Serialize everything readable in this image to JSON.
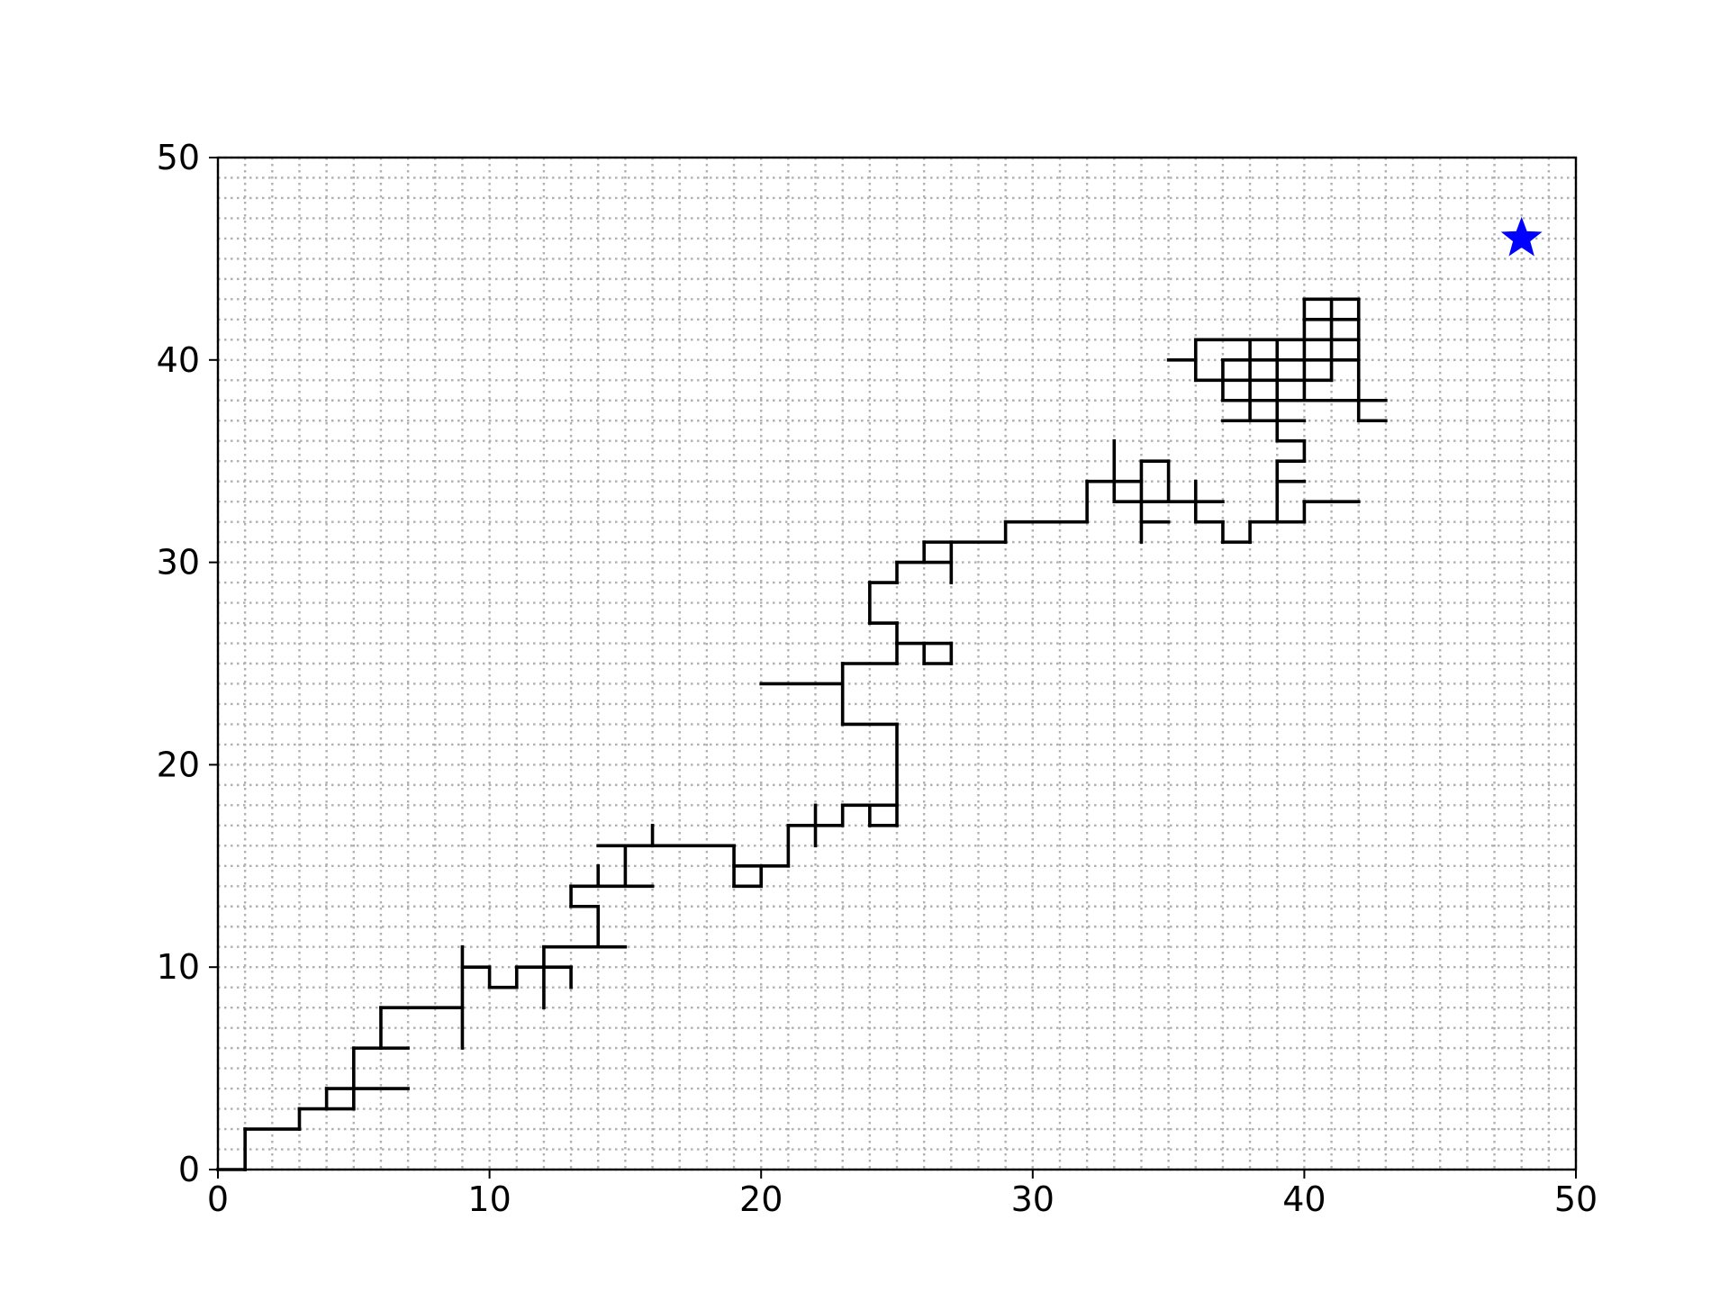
{
  "chart_data": {
    "type": "line",
    "xlim": [
      0,
      50
    ],
    "ylim": [
      0,
      50
    ],
    "grid": true,
    "x_ticks": [
      "0",
      "10",
      "20",
      "30",
      "40",
      "50"
    ],
    "y_ticks": [
      "0",
      "10",
      "20",
      "30",
      "40",
      "50"
    ],
    "series": [
      {
        "kind": "grid-path",
        "color": "#000000",
        "segments": [
          [
            [
              0,
              0
            ],
            [
              1,
              0
            ]
          ],
          [
            [
              1,
              0
            ],
            [
              1,
              2
            ]
          ],
          [
            [
              1,
              2
            ],
            [
              3,
              2
            ]
          ],
          [
            [
              3,
              2
            ],
            [
              3,
              3
            ]
          ],
          [
            [
              3,
              3
            ],
            [
              5,
              3
            ]
          ],
          [
            [
              5,
              3
            ],
            [
              5,
              6
            ]
          ],
          [
            [
              4,
              3
            ],
            [
              4,
              4
            ]
          ],
          [
            [
              4,
              4
            ],
            [
              7,
              4
            ]
          ],
          [
            [
              5,
              6
            ],
            [
              7,
              6
            ]
          ],
          [
            [
              6,
              6
            ],
            [
              6,
              8
            ]
          ],
          [
            [
              6,
              8
            ],
            [
              9,
              8
            ]
          ],
          [
            [
              9,
              6
            ],
            [
              9,
              11
            ]
          ],
          [
            [
              9,
              10
            ],
            [
              10,
              10
            ]
          ],
          [
            [
              10,
              10
            ],
            [
              10,
              9
            ]
          ],
          [
            [
              10,
              9
            ],
            [
              11,
              9
            ]
          ],
          [
            [
              11,
              9
            ],
            [
              11,
              10
            ]
          ],
          [
            [
              11,
              10
            ],
            [
              13,
              10
            ]
          ],
          [
            [
              13,
              9
            ],
            [
              13,
              10
            ]
          ],
          [
            [
              12,
              8
            ],
            [
              12,
              11
            ]
          ],
          [
            [
              12,
              11
            ],
            [
              15,
              11
            ]
          ],
          [
            [
              14,
              11
            ],
            [
              14,
              13
            ]
          ],
          [
            [
              14,
              13
            ],
            [
              13,
              13
            ]
          ],
          [
            [
              13,
              13
            ],
            [
              13,
              14
            ]
          ],
          [
            [
              13,
              14
            ],
            [
              16,
              14
            ]
          ],
          [
            [
              14,
              14
            ],
            [
              14,
              15
            ]
          ],
          [
            [
              15,
              14
            ],
            [
              15,
              16
            ]
          ],
          [
            [
              14,
              16
            ],
            [
              19,
              16
            ]
          ],
          [
            [
              16,
              16
            ],
            [
              16,
              17
            ]
          ],
          [
            [
              19,
              16
            ],
            [
              19,
              14
            ]
          ],
          [
            [
              19,
              14
            ],
            [
              20,
              14
            ]
          ],
          [
            [
              20,
              14
            ],
            [
              20,
              15
            ]
          ],
          [
            [
              19,
              15
            ],
            [
              21,
              15
            ]
          ],
          [
            [
              21,
              15
            ],
            [
              21,
              17
            ]
          ],
          [
            [
              21,
              17
            ],
            [
              23,
              17
            ]
          ],
          [
            [
              22,
              16
            ],
            [
              22,
              18
            ]
          ],
          [
            [
              23,
              17
            ],
            [
              23,
              18
            ]
          ],
          [
            [
              23,
              18
            ],
            [
              25,
              18
            ]
          ],
          [
            [
              24,
              18
            ],
            [
              24,
              17
            ]
          ],
          [
            [
              24,
              17
            ],
            [
              25,
              17
            ]
          ],
          [
            [
              25,
              17
            ],
            [
              25,
              22
            ]
          ],
          [
            [
              25,
              22
            ],
            [
              23,
              22
            ]
          ],
          [
            [
              23,
              22
            ],
            [
              23,
              25
            ]
          ],
          [
            [
              20,
              24
            ],
            [
              23,
              24
            ]
          ],
          [
            [
              23,
              25
            ],
            [
              25,
              25
            ]
          ],
          [
            [
              25,
              25
            ],
            [
              25,
              26
            ]
          ],
          [
            [
              25,
              26
            ],
            [
              27,
              26
            ]
          ],
          [
            [
              27,
              26
            ],
            [
              27,
              25
            ]
          ],
          [
            [
              27,
              25
            ],
            [
              26,
              25
            ]
          ],
          [
            [
              26,
              25
            ],
            [
              26,
              26
            ]
          ],
          [
            [
              25,
              26
            ],
            [
              25,
              27
            ]
          ],
          [
            [
              25,
              27
            ],
            [
              24,
              27
            ]
          ],
          [
            [
              24,
              27
            ],
            [
              24,
              29
            ]
          ],
          [
            [
              24,
              29
            ],
            [
              25,
              29
            ]
          ],
          [
            [
              25,
              29
            ],
            [
              25,
              30
            ]
          ],
          [
            [
              25,
              30
            ],
            [
              27,
              30
            ]
          ],
          [
            [
              26,
              30
            ],
            [
              26,
              31
            ]
          ],
          [
            [
              27,
              29
            ],
            [
              27,
              31
            ]
          ],
          [
            [
              26,
              31
            ],
            [
              29,
              31
            ]
          ],
          [
            [
              29,
              31
            ],
            [
              29,
              32
            ]
          ],
          [
            [
              29,
              32
            ],
            [
              32,
              32
            ]
          ],
          [
            [
              32,
              32
            ],
            [
              32,
              34
            ]
          ],
          [
            [
              32,
              34
            ],
            [
              34,
              34
            ]
          ],
          [
            [
              33,
              33
            ],
            [
              33,
              36
            ]
          ],
          [
            [
              33,
              33
            ],
            [
              37,
              33
            ]
          ],
          [
            [
              34,
              31
            ],
            [
              34,
              35
            ]
          ],
          [
            [
              34,
              32
            ],
            [
              35,
              32
            ]
          ],
          [
            [
              34,
              35
            ],
            [
              35,
              35
            ]
          ],
          [
            [
              35,
              35
            ],
            [
              35,
              33
            ]
          ],
          [
            [
              36,
              32
            ],
            [
              36,
              34
            ]
          ],
          [
            [
              36,
              32
            ],
            [
              37,
              32
            ]
          ],
          [
            [
              37,
              32
            ],
            [
              37,
              31
            ]
          ],
          [
            [
              37,
              31
            ],
            [
              38,
              31
            ]
          ],
          [
            [
              38,
              31
            ],
            [
              38,
              32
            ]
          ],
          [
            [
              38,
              32
            ],
            [
              40,
              32
            ]
          ],
          [
            [
              39,
              32
            ],
            [
              39,
              35
            ]
          ],
          [
            [
              39,
              34
            ],
            [
              40,
              34
            ]
          ],
          [
            [
              39,
              35
            ],
            [
              40,
              35
            ]
          ],
          [
            [
              40,
              35
            ],
            [
              40,
              36
            ]
          ],
          [
            [
              40,
              36
            ],
            [
              39,
              36
            ]
          ],
          [
            [
              39,
              36
            ],
            [
              39,
              41
            ]
          ],
          [
            [
              40,
              32
            ],
            [
              40,
              33
            ]
          ],
          [
            [
              40,
              33
            ],
            [
              42,
              33
            ]
          ],
          [
            [
              35,
              40
            ],
            [
              36,
              40
            ]
          ],
          [
            [
              36,
              39
            ],
            [
              36,
              41
            ]
          ],
          [
            [
              36,
              41
            ],
            [
              42,
              41
            ]
          ],
          [
            [
              36,
              39
            ],
            [
              37,
              39
            ]
          ],
          [
            [
              37,
              38
            ],
            [
              37,
              40
            ]
          ],
          [
            [
              37,
              38
            ],
            [
              42,
              38
            ]
          ],
          [
            [
              37,
              37
            ],
            [
              40,
              37
            ]
          ],
          [
            [
              37,
              40
            ],
            [
              42,
              40
            ]
          ],
          [
            [
              38,
              37
            ],
            [
              38,
              41
            ]
          ],
          [
            [
              40,
              38
            ],
            [
              40,
              43
            ]
          ],
          [
            [
              40,
              43
            ],
            [
              42,
              43
            ]
          ],
          [
            [
              40,
              42
            ],
            [
              42,
              42
            ]
          ],
          [
            [
              41,
              39
            ],
            [
              41,
              43
            ]
          ],
          [
            [
              42,
              37
            ],
            [
              42,
              43
            ]
          ],
          [
            [
              42,
              37
            ],
            [
              43,
              37
            ]
          ],
          [
            [
              42,
              38
            ],
            [
              43,
              38
            ]
          ],
          [
            [
              37,
              39
            ],
            [
              41,
              39
            ]
          ]
        ]
      },
      {
        "kind": "marker",
        "marker": "star",
        "color": "#0000ff",
        "x": [
          48
        ],
        "y": [
          46
        ]
      }
    ]
  }
}
